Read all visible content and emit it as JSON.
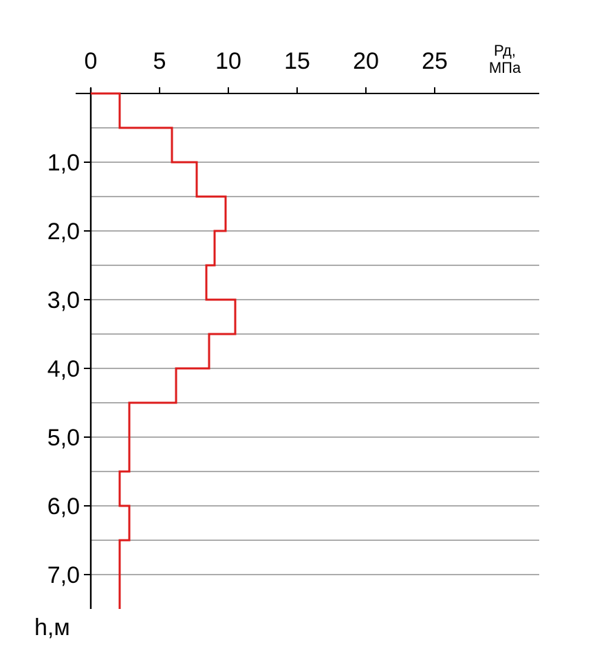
{
  "chart_data": {
    "type": "line",
    "step": true,
    "orientation": "depth-profile",
    "x_axis": {
      "position": "top",
      "range": [
        0,
        30
      ],
      "ticks": [
        0,
        5,
        10,
        15,
        20,
        25
      ],
      "tick_labels": [
        "0",
        "5",
        "10",
        "15",
        "20",
        "25"
      ],
      "label_line1": "Рд,",
      "label_line2": "МПа"
    },
    "y_axis": {
      "position": "left",
      "inverted": true,
      "range": [
        0,
        7.5
      ],
      "gridlines": [
        0.5,
        1.0,
        1.5,
        2.0,
        2.5,
        3.0,
        3.5,
        4.0,
        4.5,
        5.0,
        5.5,
        6.0,
        6.5,
        7.0
      ],
      "labeled_ticks": [
        1,
        2,
        3,
        4,
        5,
        6,
        7
      ],
      "tick_labels": [
        "1,0",
        "2,0",
        "3,0",
        "4,0",
        "5,0",
        "6,0",
        "7,0"
      ],
      "label": "h,м"
    },
    "grid": true,
    "series": [
      {
        "color": "#dd1c1c",
        "points": [
          {
            "x": 0.0,
            "y": 0.0
          },
          {
            "x": 2.1,
            "y": 0.0
          },
          {
            "x": 2.1,
            "y": 0.5
          },
          {
            "x": 5.9,
            "y": 0.5
          },
          {
            "x": 5.9,
            "y": 1.0
          },
          {
            "x": 7.7,
            "y": 1.0
          },
          {
            "x": 7.7,
            "y": 1.5
          },
          {
            "x": 9.8,
            "y": 1.5
          },
          {
            "x": 9.8,
            "y": 2.0
          },
          {
            "x": 9.0,
            "y": 2.0
          },
          {
            "x": 9.0,
            "y": 2.5
          },
          {
            "x": 8.4,
            "y": 2.5
          },
          {
            "x": 8.4,
            "y": 3.0
          },
          {
            "x": 10.5,
            "y": 3.0
          },
          {
            "x": 10.5,
            "y": 3.5
          },
          {
            "x": 8.6,
            "y": 3.5
          },
          {
            "x": 8.6,
            "y": 4.0
          },
          {
            "x": 6.2,
            "y": 4.0
          },
          {
            "x": 6.2,
            "y": 4.5
          },
          {
            "x": 2.8,
            "y": 4.5
          },
          {
            "x": 2.8,
            "y": 5.5
          },
          {
            "x": 2.1,
            "y": 5.5
          },
          {
            "x": 2.1,
            "y": 6.0
          },
          {
            "x": 2.8,
            "y": 6.0
          },
          {
            "x": 2.8,
            "y": 6.5
          },
          {
            "x": 2.1,
            "y": 6.5
          },
          {
            "x": 2.1,
            "y": 7.5
          }
        ]
      }
    ]
  }
}
